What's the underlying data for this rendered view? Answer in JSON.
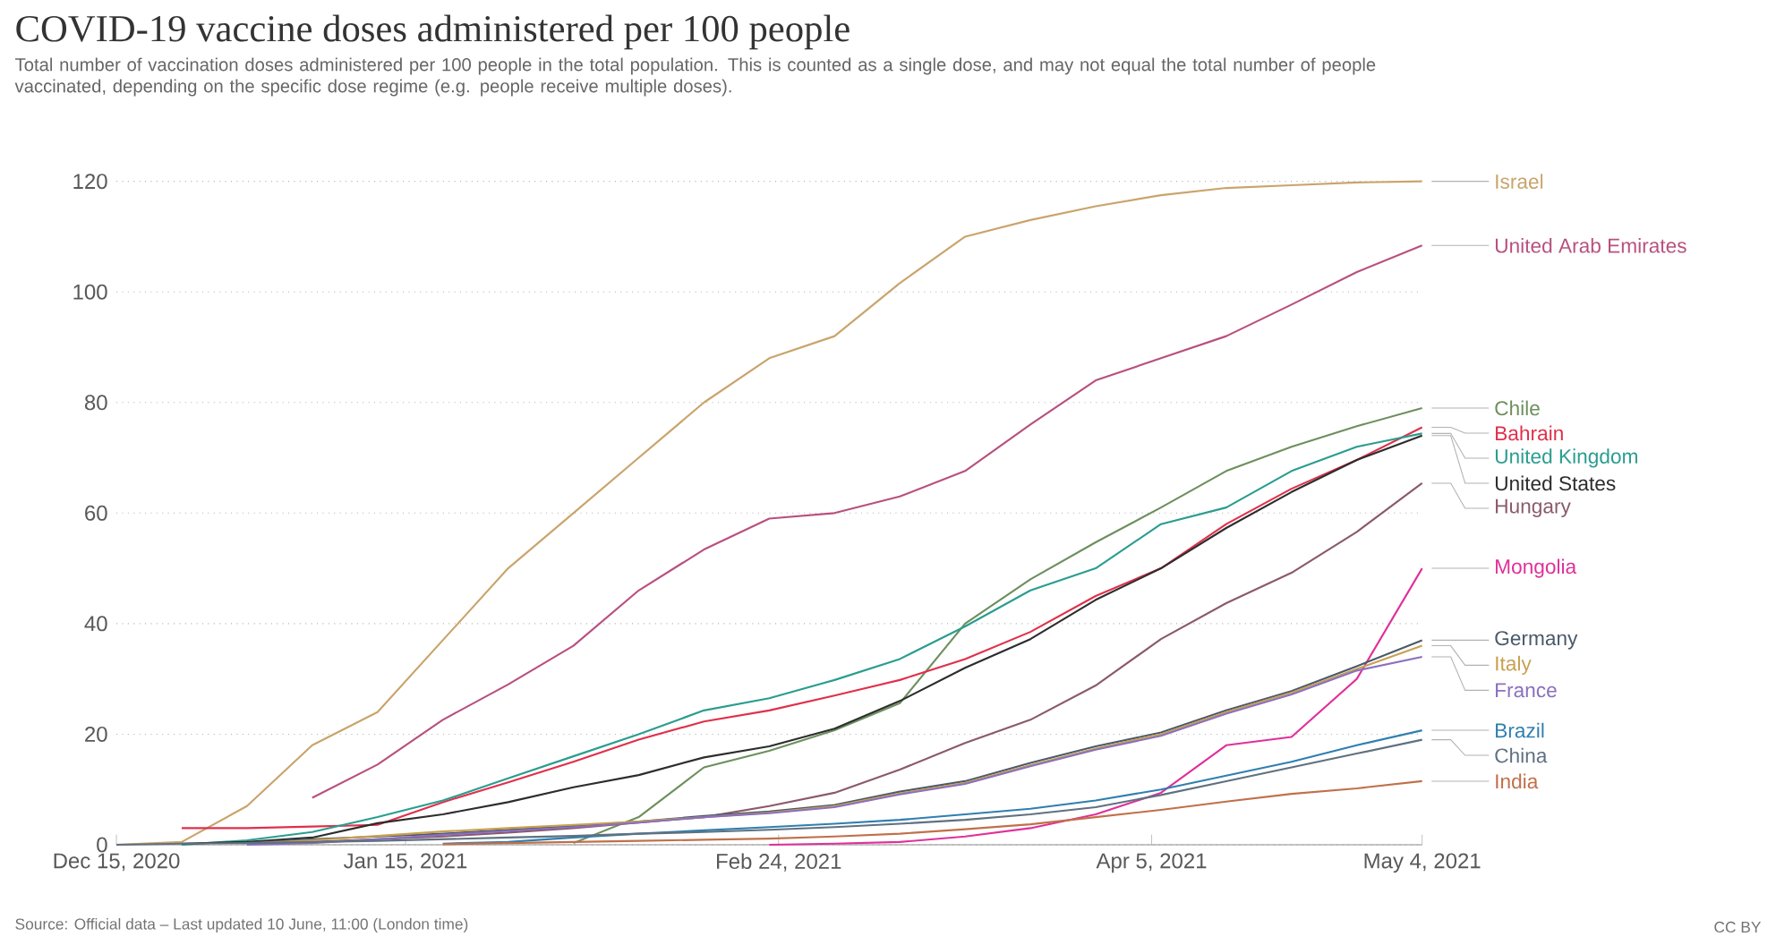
{
  "chart_data": {
    "type": "line",
    "title": "COVID-19 vaccine doses administered per 100 people",
    "subtitle": "Total number of vaccination doses administered per 100 people in the total population. This is counted as a single dose, and may not equal the total number of people vaccinated, depending on the specific dose regime (e.g. people receive multiple doses).",
    "annotations": [
      "Source: Official data – Last updated 10 June, 11:00 (London time)",
      "CC BY"
    ],
    "x": [
      "2020-12-15",
      "2020-12-22",
      "2020-12-29",
      "2021-01-05",
      "2021-01-12",
      "2021-01-19",
      "2021-01-26",
      "2021-02-02",
      "2021-02-09",
      "2021-02-16",
      "2021-02-23",
      "2021-03-02",
      "2021-03-09",
      "2021-03-16",
      "2021-03-23",
      "2021-03-30",
      "2021-04-06",
      "2021-04-13",
      "2021-04-20",
      "2021-04-27",
      "2021-05-04"
    ],
    "xlim": [
      "2020-12-15",
      "2021-05-04"
    ],
    "xticks": [
      {
        "value": "2020-12-15",
        "label": "Dec 15, 2020"
      },
      {
        "value": "2021-01-15",
        "label": "Jan 15, 2021"
      },
      {
        "value": "2021-02-24",
        "label": "Feb 24, 2021"
      },
      {
        "value": "2021-04-05",
        "label": "Apr 5, 2021"
      },
      {
        "value": "2021-05-04",
        "label": "May 4, 2021"
      }
    ],
    "ylim": [
      0,
      120
    ],
    "yticks": [
      0,
      20,
      40,
      60,
      80,
      100,
      120
    ],
    "grid": "y",
    "line_style": "solid",
    "series": [
      {
        "name": "Israel",
        "color": "#c9a46b",
        "values": [
          0,
          0.5,
          7,
          18,
          24,
          37,
          50,
          60,
          70,
          80,
          88,
          92,
          101.6,
          110,
          113,
          115.5,
          117.5,
          118.8,
          119.3,
          119.8,
          120
        ]
      },
      {
        "name": "United Arab Emirates",
        "color": "#b8507e",
        "values": [
          null,
          null,
          null,
          8.5,
          14.5,
          22.6,
          29,
          36,
          46,
          53.4,
          59,
          60,
          63,
          67.6,
          76,
          84,
          88,
          92,
          97.7,
          103.6,
          108.4
        ]
      },
      {
        "name": "Chile",
        "color": "#6d8f5e",
        "values": [
          null,
          null,
          null,
          null,
          null,
          null,
          null,
          0.3,
          5,
          14,
          17,
          20.7,
          25.6,
          40,
          48,
          54.7,
          61,
          67.6,
          72,
          75.7,
          79
        ]
      },
      {
        "name": "Bahrain",
        "color": "#e0304b",
        "values": [
          null,
          3,
          3,
          3.3,
          3.6,
          7.7,
          11.3,
          15,
          19,
          22.3,
          24.3,
          27,
          29.8,
          33.6,
          38.5,
          45,
          50,
          58,
          64.4,
          69.6,
          75.5
        ]
      },
      {
        "name": "United Kingdom",
        "color": "#2a9d8f",
        "values": [
          null,
          0,
          0.8,
          2.3,
          5,
          8,
          12,
          16,
          20,
          24.3,
          26.5,
          29.8,
          33.6,
          39.5,
          46,
          50,
          58,
          61,
          67.6,
          72,
          74.4
        ]
      },
      {
        "name": "United States",
        "color": "#2d2d2d",
        "values": [
          null,
          0.2,
          0.5,
          1.3,
          3.9,
          5.5,
          7.7,
          10.4,
          12.6,
          15.8,
          17.8,
          21,
          26,
          32,
          37.2,
          44.3,
          50,
          57.3,
          63.8,
          69.6,
          74
        ]
      },
      {
        "name": "Hungary",
        "color": "#8a5a6b",
        "values": [
          null,
          null,
          0.2,
          0.5,
          1,
          1.5,
          2.2,
          3,
          4,
          5,
          7,
          9.4,
          13.6,
          18.4,
          22.6,
          28.8,
          37.2,
          43.7,
          49.2,
          56.6,
          65.4
        ]
      },
      {
        "name": "Mongolia",
        "color": "#e0309a",
        "values": [
          null,
          null,
          null,
          null,
          null,
          null,
          null,
          null,
          null,
          null,
          0,
          0.2,
          0.5,
          1.5,
          3,
          5.5,
          9.4,
          18,
          19.5,
          30,
          50
        ]
      },
      {
        "name": "Germany",
        "color": "#4a5a6a",
        "values": [
          null,
          null,
          0.3,
          1,
          1.5,
          2,
          2.7,
          3.4,
          4.2,
          5.2,
          6,
          7.2,
          9.6,
          11.5,
          14.8,
          17.8,
          20.3,
          24.3,
          27.8,
          32.3,
          37
        ]
      },
      {
        "name": "Italy",
        "color": "#c8a050",
        "values": [
          null,
          null,
          0.2,
          0.8,
          1.6,
          2.4,
          3,
          3.6,
          4.2,
          5,
          5.8,
          7,
          9.3,
          11.2,
          14.4,
          17.4,
          20,
          24,
          27.5,
          31.8,
          36
        ]
      },
      {
        "name": "France",
        "color": "#8a70c0",
        "values": [
          null,
          null,
          0,
          0.3,
          1,
          1.8,
          2.5,
          3.2,
          4,
          5,
          5.7,
          6.8,
          9.1,
          11,
          14.2,
          17.2,
          19.7,
          23.7,
          27.2,
          31.5,
          34
        ]
      },
      {
        "name": "Brazil",
        "color": "#2f7fb0",
        "values": [
          null,
          null,
          null,
          null,
          null,
          0.2,
          0.5,
          1.3,
          2,
          2.6,
          3.2,
          3.8,
          4.5,
          5.5,
          6.5,
          8,
          10,
          12.5,
          15,
          18,
          20.7
        ]
      },
      {
        "name": "China",
        "color": "#607080",
        "values": [
          0,
          0.2,
          0.3,
          0.5,
          0.7,
          1,
          1.3,
          1.6,
          2,
          2.3,
          2.7,
          3.2,
          3.8,
          4.5,
          5.5,
          6.8,
          9,
          11.5,
          14,
          16.5,
          19
        ]
      },
      {
        "name": "India",
        "color": "#c0704a",
        "values": [
          null,
          null,
          null,
          null,
          null,
          0.1,
          0.3,
          0.5,
          0.7,
          0.9,
          1.1,
          1.5,
          2,
          2.8,
          3.7,
          5,
          6.3,
          7.8,
          9.2,
          10.2,
          11.5
        ]
      }
    ]
  }
}
